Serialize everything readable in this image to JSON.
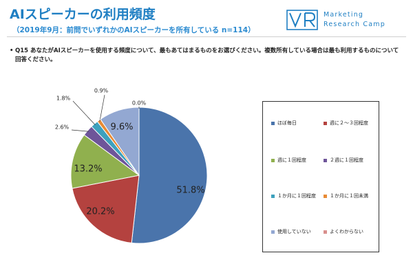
{
  "header": {
    "title": "AIスピーカーの利用頻度",
    "subtitle": "（2019年9月：前問でいずれかのAIスピーカーを所有している n=114）",
    "logo_line1": "Marketing",
    "logo_line2": "Research Camp"
  },
  "question": {
    "bullet": "•",
    "text": "Q15 あなたがAIスピーカーを使用する頻度について、最もあてはまるものをお選びください。複数所有している場合は最も利用するものについて回答ください。"
  },
  "chart_data": {
    "type": "pie",
    "start_angle_deg": 0,
    "direction": "clockwise",
    "slices": [
      {
        "label": "ほぼ毎日",
        "value": 51.8,
        "display": "51.8%",
        "color": "#4a74ab"
      },
      {
        "label": "週に２～３回程度",
        "value": 20.2,
        "display": "20.2%",
        "color": "#b4423f"
      },
      {
        "label": "週に１回程度",
        "value": 13.2,
        "display": "13.2%",
        "color": "#90b04e"
      },
      {
        "label": "２週に１回程度",
        "value": 2.6,
        "display": "2.6%",
        "color": "#6e5599"
      },
      {
        "label": "１か月に１回程度",
        "value": 1.8,
        "display": "1.8%",
        "color": "#3da1bd"
      },
      {
        "label": "１か月に１回未満",
        "value": 0.9,
        "display": "0.9%",
        "color": "#e88b35"
      },
      {
        "label": "使用していない",
        "value": 9.6,
        "display": "9.6%",
        "color": "#93a8d2"
      },
      {
        "label": "よくわからない",
        "value": 0.0,
        "display": "0.0%",
        "color": "#d98f8d"
      }
    ],
    "legend": {
      "placement": "right",
      "columns": 2
    }
  }
}
